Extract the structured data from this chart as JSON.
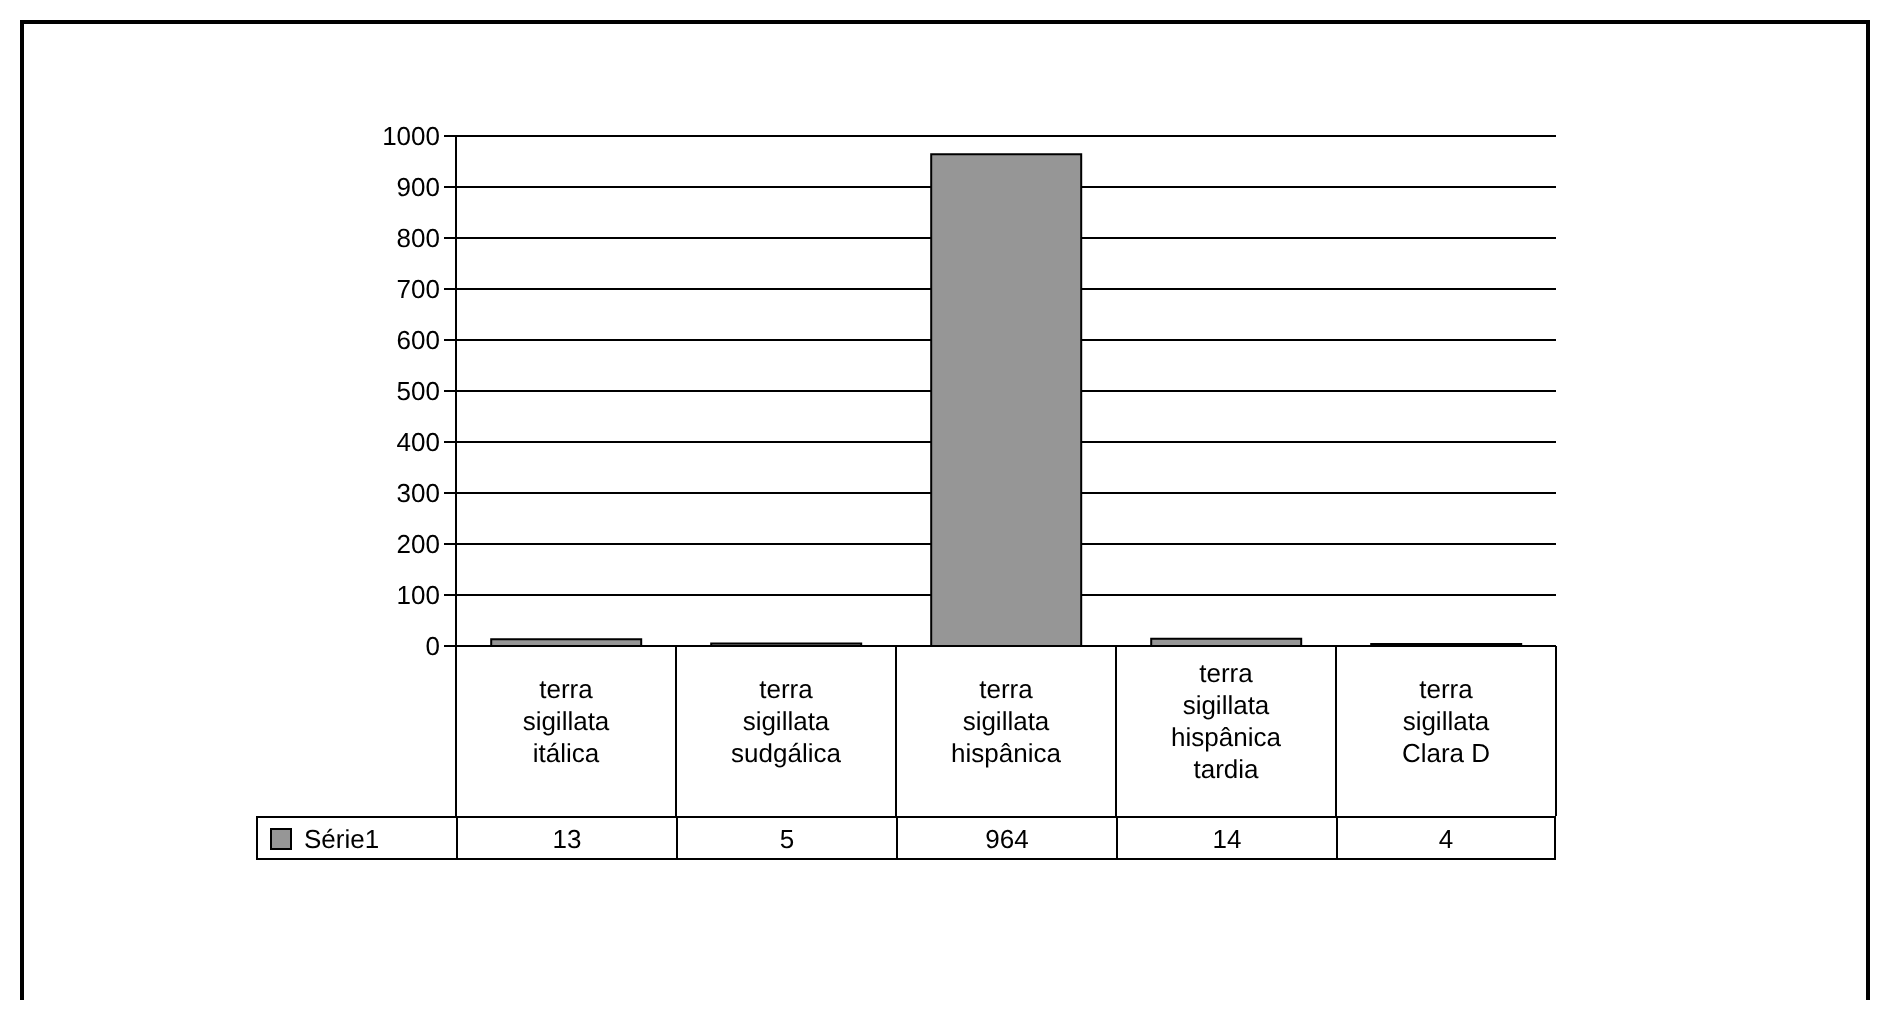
{
  "chart_data": {
    "type": "bar",
    "categories": [
      "terra sigillata itálica",
      "terra sigillata sudgálica",
      "terra sigillata hispânica",
      "terra sigillata hispânica tardia",
      "terra sigillata Clara D"
    ],
    "series": [
      {
        "name": "Série1",
        "color": "#969696",
        "values": [
          13,
          5,
          964,
          14,
          4
        ]
      }
    ],
    "ylim": [
      0,
      1000
    ],
    "yticks": [
      0,
      100,
      200,
      300,
      400,
      500,
      600,
      700,
      800,
      900,
      1000
    ],
    "grid": "y",
    "legend": "bottom",
    "data_labels": true
  }
}
